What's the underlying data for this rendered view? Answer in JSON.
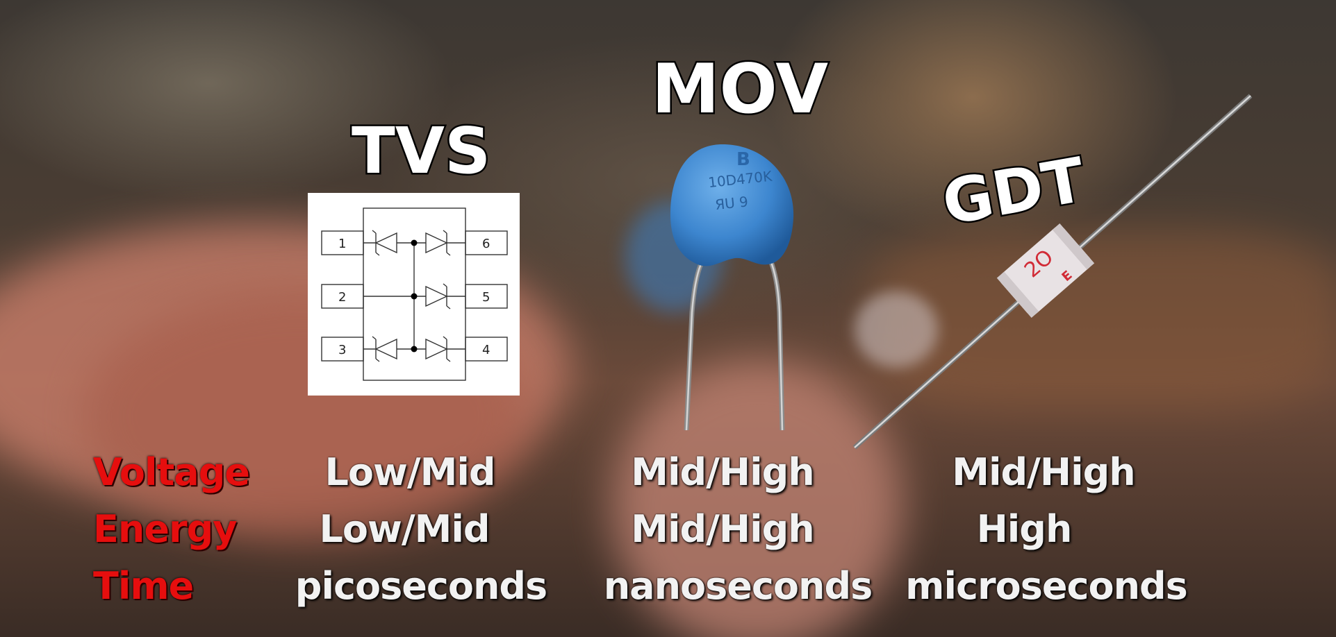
{
  "labels": {
    "tvs": "TVS",
    "mov": "MOV",
    "gdt": "GDT"
  },
  "tvs_diagram": {
    "pins": [
      "1",
      "2",
      "3",
      "4",
      "5",
      "6"
    ]
  },
  "mov_marking": {
    "line1": "10D470K",
    "line2": "ЯU 9",
    "logo": "B"
  },
  "gdt_marking": {
    "text1": "2O",
    "text2": "E"
  },
  "specs": {
    "rows": [
      {
        "key": "Voltage",
        "tvs": "Low/Mid",
        "mov": "Mid/High",
        "gdt": "Mid/High"
      },
      {
        "key": "Energy",
        "tvs": "Low/Mid",
        "mov": "Mid/High",
        "gdt": "High"
      },
      {
        "key": "Time",
        "tvs": "picoseconds",
        "mov": "nanoseconds",
        "gdt": "microseconds"
      }
    ]
  },
  "colors": {
    "key_text": "#e60e0e",
    "value_text": "#f2f2f2",
    "mov_body": "#3d86cf"
  }
}
